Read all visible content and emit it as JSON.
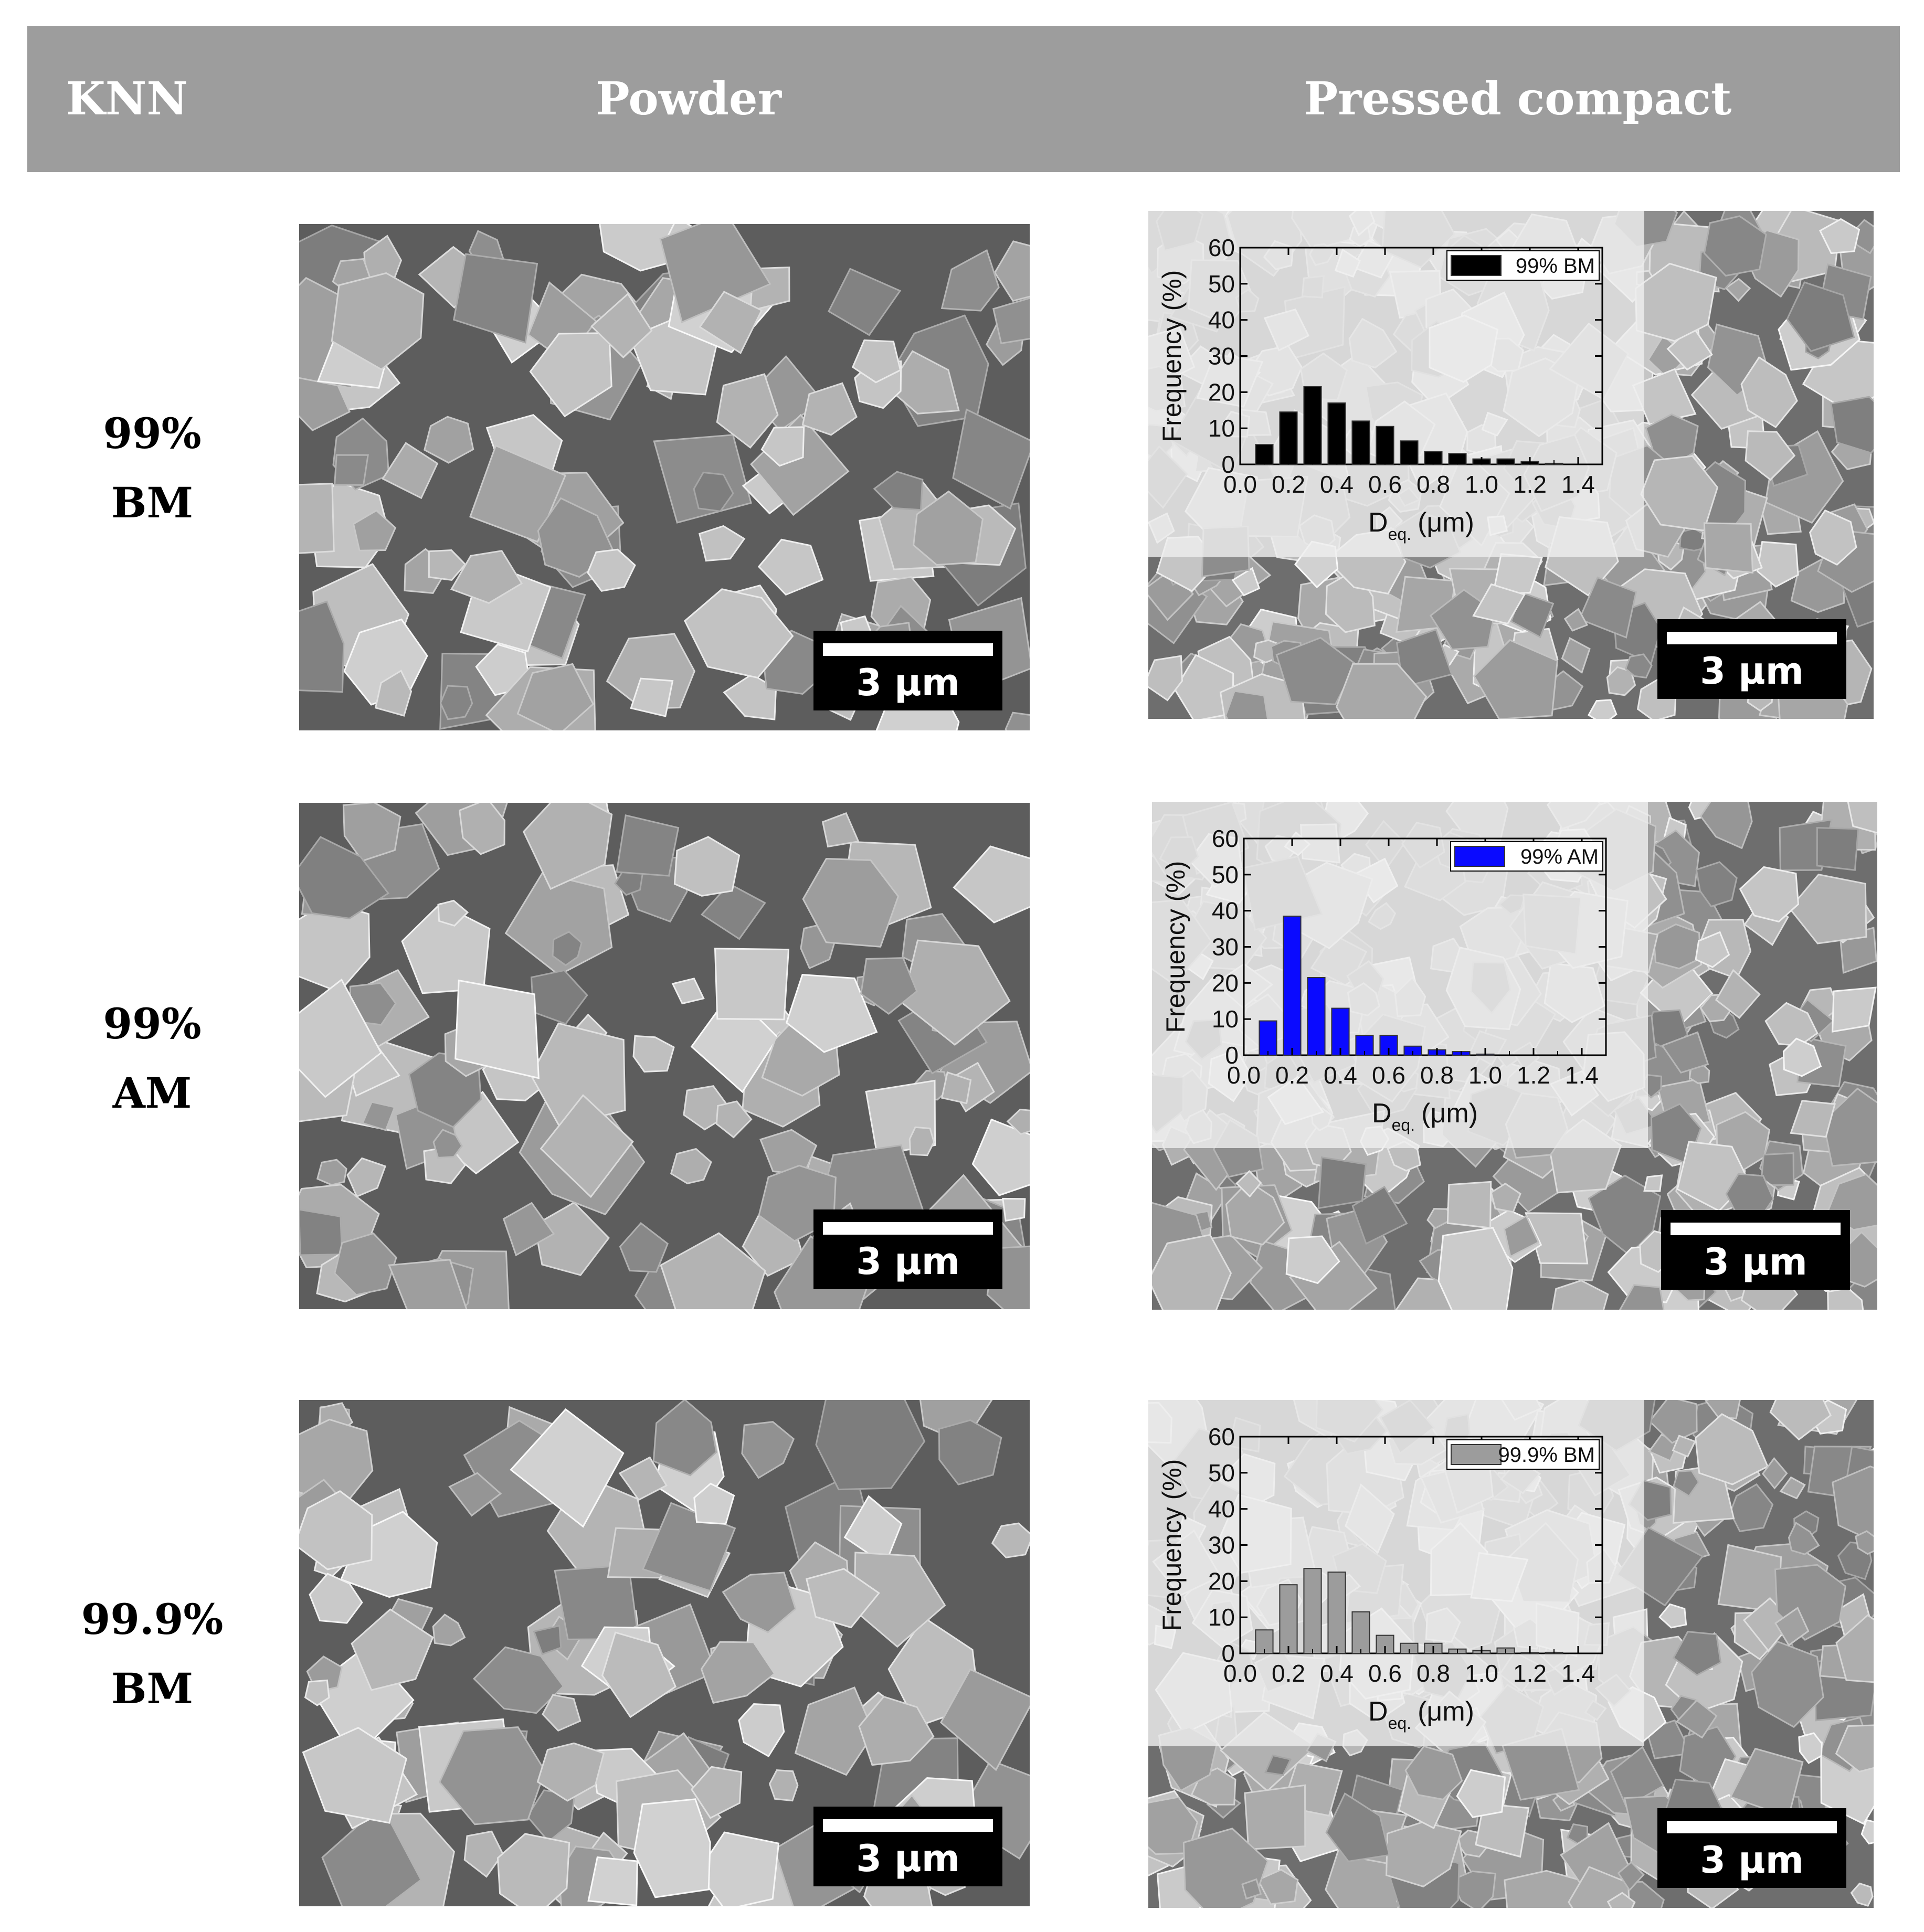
{
  "header": {
    "col_knn": "KNN",
    "col_powder": "Powder",
    "col_compact": "Pressed compact"
  },
  "scale_bar_label": "3 μm",
  "rows": [
    {
      "label_line1": "99%",
      "label_line2": "BM"
    },
    {
      "label_line1": "99%",
      "label_line2": "AM"
    },
    {
      "label_line1": "99.9%",
      "label_line2": "BM"
    }
  ],
  "chart_data": [
    {
      "type": "bar",
      "legend": "99% BM",
      "color": "#000000",
      "x": [
        0.1,
        0.2,
        0.3,
        0.4,
        0.5,
        0.6,
        0.7,
        0.8,
        0.9,
        1.0,
        1.1,
        1.2,
        1.3
      ],
      "values": [
        5.5,
        14.5,
        21.5,
        17,
        12,
        10.5,
        6.5,
        3.5,
        3,
        1.5,
        1.5,
        0.8,
        0.3
      ],
      "xlabel_main": "D",
      "xlabel_sub": "eq.",
      "xlabel_unit": "(μm)",
      "ylabel": "Frequency (%)",
      "xlim": [
        0.0,
        1.5
      ],
      "ylim": [
        0,
        60
      ],
      "xticks": [
        "0.0",
        "0.2",
        "0.4",
        "0.6",
        "0.8",
        "1.0",
        "1.2",
        "1.4"
      ],
      "yticks": [
        "0",
        "10",
        "20",
        "30",
        "40",
        "50",
        "60"
      ],
      "legend_position": "top-right"
    },
    {
      "type": "bar",
      "legend": "99% AM",
      "color": "#0a0aff",
      "x": [
        0.1,
        0.2,
        0.3,
        0.4,
        0.5,
        0.6,
        0.7,
        0.8,
        0.9,
        1.0
      ],
      "values": [
        9.5,
        38.5,
        21.5,
        13,
        5.5,
        5.5,
        2.5,
        1.5,
        1,
        0.3
      ],
      "xlabel_main": "D",
      "xlabel_sub": "eq.",
      "xlabel_unit": "(μm)",
      "ylabel": "Frequency (%)",
      "xlim": [
        0.0,
        1.5
      ],
      "ylim": [
        0,
        60
      ],
      "xticks": [
        "0.0",
        "0.2",
        "0.4",
        "0.6",
        "0.8",
        "1.0",
        "1.2",
        "1.4"
      ],
      "yticks": [
        "0",
        "10",
        "20",
        "30",
        "40",
        "50",
        "60"
      ],
      "legend_position": "top-right"
    },
    {
      "type": "bar",
      "legend": "99.9% BM",
      "color": "#9c9c9c",
      "x": [
        0.1,
        0.2,
        0.3,
        0.4,
        0.5,
        0.6,
        0.7,
        0.8,
        0.9,
        1.0,
        1.1,
        1.2,
        1.3
      ],
      "values": [
        6.5,
        19,
        23.5,
        22.5,
        11.5,
        5,
        2.8,
        2.8,
        1.2,
        0.8,
        1.5,
        0.2,
        0.3
      ],
      "xlabel_main": "D",
      "xlabel_sub": "eq.",
      "xlabel_unit": "(μm)",
      "ylabel": "Frequency (%)",
      "xlim": [
        0.0,
        1.5
      ],
      "ylim": [
        0,
        60
      ],
      "xticks": [
        "0.0",
        "0.2",
        "0.4",
        "0.6",
        "0.8",
        "1.0",
        "1.2",
        "1.4"
      ],
      "yticks": [
        "0",
        "10",
        "20",
        "30",
        "40",
        "50",
        "60"
      ],
      "legend_position": "top-right"
    }
  ]
}
